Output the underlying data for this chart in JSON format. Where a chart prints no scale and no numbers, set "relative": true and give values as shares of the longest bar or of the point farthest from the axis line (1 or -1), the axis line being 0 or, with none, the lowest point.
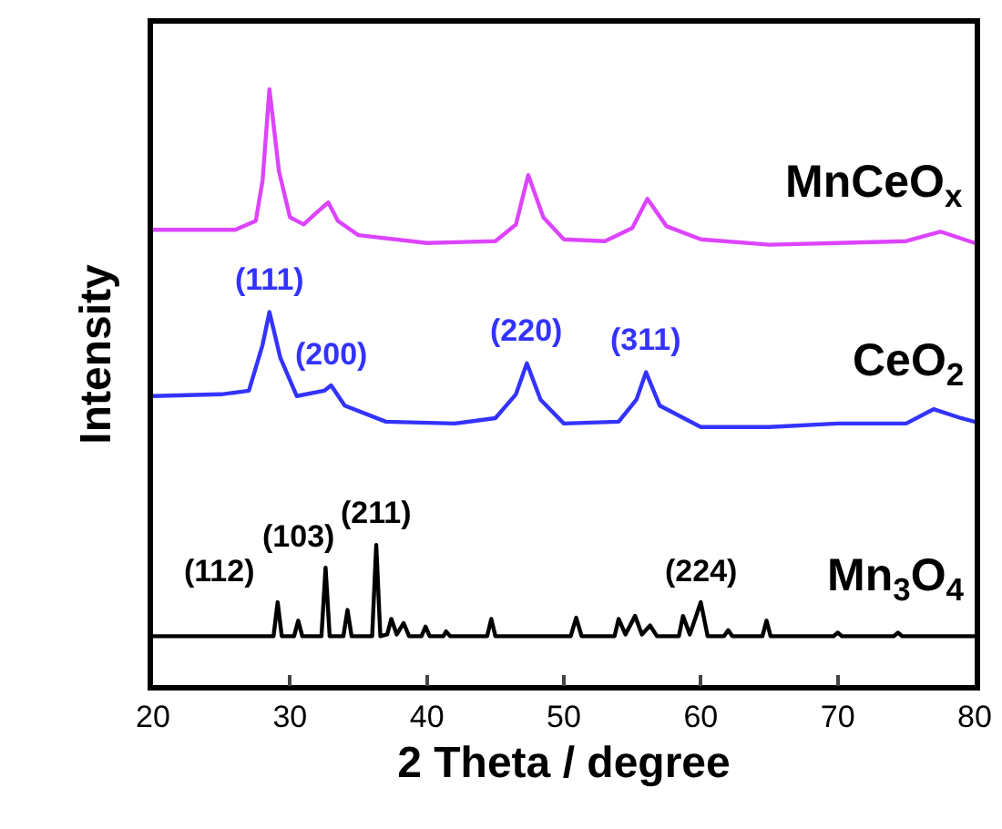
{
  "chart_data": {
    "type": "line",
    "relative": true,
    "xlabel": "2 Theta / degree",
    "ylabel": "Intensity",
    "xlim": [
      20,
      80
    ],
    "xticks": [
      20,
      30,
      40,
      50,
      60,
      70,
      80
    ],
    "grid": false,
    "legend": false,
    "tick_labels": "x",
    "line_style": "solid",
    "marker": "none",
    "series": [
      {
        "name": "MnCeO$_{x}$",
        "color": "#dd44ff",
        "x": [
          20,
          26,
          27.5,
          28,
          28.5,
          29.2,
          30,
          31,
          32,
          32.8,
          33.5,
          35,
          40,
          45,
          46.5,
          47.4,
          48.5,
          50,
          53,
          55,
          56.1,
          57.5,
          60,
          65,
          70,
          75,
          77.5,
          80
        ],
        "values": [
          0.764,
          0.764,
          0.779,
          0.847,
          1,
          0.862,
          0.785,
          0.773,
          0.794,
          0.81,
          0.779,
          0.755,
          0.742,
          0.745,
          0.773,
          0.856,
          0.785,
          0.748,
          0.745,
          0.767,
          0.816,
          0.77,
          0.748,
          0.739,
          0.742,
          0.745,
          0.761,
          0.742
        ]
      },
      {
        "name": "CeO$_{2}$",
        "color": "#3333ff",
        "x": [
          20,
          25,
          27,
          28,
          28.5,
          29.3,
          30.5,
          32.5,
          33,
          34,
          37,
          42,
          45,
          46.5,
          47.3,
          48.3,
          50,
          54,
          55.3,
          56,
          57,
          60,
          65,
          70,
          75,
          77,
          79,
          80
        ],
        "values": [
          0.485,
          0.488,
          0.494,
          0.571,
          0.626,
          0.549,
          0.485,
          0.494,
          0.503,
          0.469,
          0.442,
          0.439,
          0.448,
          0.488,
          0.54,
          0.479,
          0.439,
          0.442,
          0.479,
          0.525,
          0.469,
          0.433,
          0.433,
          0.439,
          0.439,
          0.463,
          0.448,
          0.442
        ]
      },
      {
        "name": "Mn$_{3}$O$_{4}$",
        "color": "#000000",
        "x": [
          20,
          28.8,
          29.1,
          29.4,
          30.3,
          30.6,
          30.9,
          32.3,
          32.6,
          32.9,
          33.9,
          34.2,
          34.5,
          36,
          36.3,
          36.6,
          37.1,
          37.4,
          37.8,
          38.3,
          38.7,
          39.6,
          39.9,
          40.2,
          41.2,
          41.4,
          41.7,
          44.4,
          44.7,
          45,
          50.5,
          50.9,
          51.3,
          53.7,
          54,
          54.5,
          55.2,
          55.7,
          56.3,
          56.8,
          58.4,
          58.7,
          59.2,
          60,
          60.5,
          61.7,
          62,
          62.3,
          64.5,
          64.8,
          65.1,
          69.7,
          70,
          70.3,
          74.1,
          74.4,
          74.7,
          80
        ],
        "values": [
          0.082,
          0.082,
          0.139,
          0.082,
          0.082,
          0.108,
          0.082,
          0.082,
          0.197,
          0.082,
          0.082,
          0.126,
          0.082,
          0.082,
          0.235,
          0.082,
          0.085,
          0.111,
          0.085,
          0.104,
          0.082,
          0.082,
          0.098,
          0.082,
          0.082,
          0.09,
          0.082,
          0.082,
          0.111,
          0.082,
          0.082,
          0.113,
          0.082,
          0.082,
          0.111,
          0.085,
          0.116,
          0.085,
          0.1,
          0.082,
          0.082,
          0.116,
          0.085,
          0.139,
          0.082,
          0.082,
          0.092,
          0.082,
          0.082,
          0.108,
          0.082,
          0.082,
          0.088,
          0.082,
          0.082,
          0.088,
          0.082,
          0.082
        ]
      }
    ],
    "annotations": [
      {
        "text": "(111)",
        "x": 28.5,
        "y": 0.626
      },
      {
        "text": "(200)",
        "x": 33,
        "y": 0.503
      },
      {
        "text": "(220)",
        "x": 47.3,
        "y": 0.54
      },
      {
        "text": "(311)",
        "x": 56,
        "y": 0.525
      },
      {
        "text": "(112)",
        "x": 29.1,
        "y": 0.139
      },
      {
        "text": "(103)",
        "x": 32.6,
        "y": 0.197
      },
      {
        "text": "(211)",
        "x": 36.3,
        "y": 0.235
      },
      {
        "text": "(224)",
        "x": 60,
        "y": 0.139
      }
    ]
  }
}
